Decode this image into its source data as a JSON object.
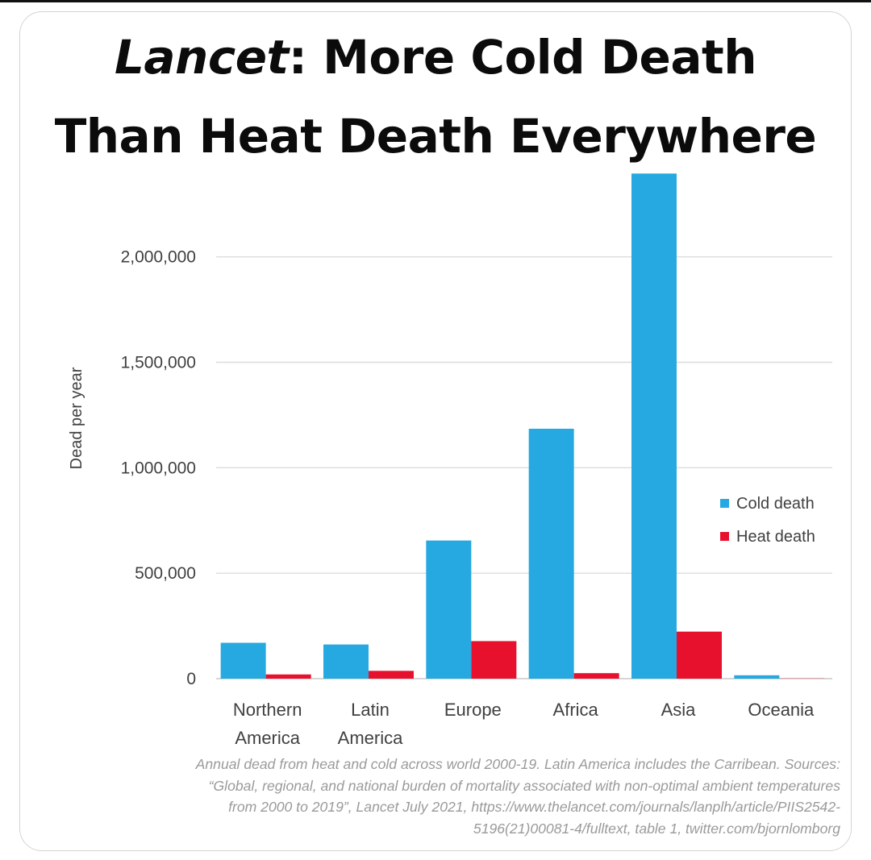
{
  "title": {
    "italic_part": "Lancet",
    "line1_rest": ": More Cold Death",
    "line2": "Than Heat Death Everywhere"
  },
  "caption": {
    "line1": "Annual dead from heat and cold across world 2000-19. Latin America includes the Carribean. Sources:",
    "line2": "“Global, regional, and national burden of mortality associated with non-optimal ambient temperatures",
    "line3": "from 2000 to 2019”, Lancet July 2021, https://www.thelancet.com/journals/lanplh/article/PIIS2542-",
    "line4": "5196(21)00081-4/fulltext, table 1, twitter.com/bjornlomborg"
  },
  "chart_data": {
    "type": "bar",
    "title": "Lancet: More Cold Death Than Heat Death Everywhere",
    "ylabel": "Dead per year",
    "xlabel": "",
    "ylim": [
      0,
      2400000
    ],
    "yticks": [
      0,
      500000,
      1000000,
      1500000,
      2000000
    ],
    "ytick_labels": [
      "0",
      "500,000",
      "1,000,000",
      "1,500,000",
      "2,000,000"
    ],
    "grid": true,
    "legend_position": "right",
    "categories": [
      [
        "Northern",
        "America"
      ],
      [
        "Latin",
        "America"
      ],
      [
        "Europe"
      ],
      [
        "Africa"
      ],
      [
        "Asia"
      ],
      [
        "Oceania"
      ]
    ],
    "series": [
      {
        "name": "Cold death",
        "color": "#25a9e0",
        "values": [
          170000,
          162000,
          655000,
          1185000,
          2395000,
          16000
        ]
      },
      {
        "name": "Heat death",
        "color": "#e8112d",
        "values": [
          20000,
          37000,
          178000,
          26000,
          223000,
          1000
        ]
      }
    ]
  }
}
